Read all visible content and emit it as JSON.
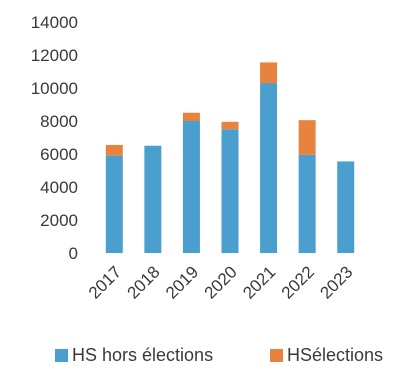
{
  "chart_data": {
    "type": "bar",
    "stacked": true,
    "categories": [
      "2017",
      "2018",
      "2019",
      "2020",
      "2021",
      "2022",
      "2023"
    ],
    "series": [
      {
        "name": "HS hors élections",
        "color": "#4A9FCF",
        "values": [
          5900,
          6500,
          8000,
          7500,
          10300,
          5950,
          5550
        ]
      },
      {
        "name": "HSélections",
        "color": "#E7833F",
        "values": [
          650,
          0,
          500,
          450,
          1250,
          2100,
          0
        ]
      }
    ],
    "yticks": [
      "0",
      "2000",
      "4000",
      "6000",
      "8000",
      "10000",
      "12000",
      "14000"
    ],
    "ylim": [
      0,
      14000
    ],
    "grid": false,
    "legend_position": "bottom"
  }
}
